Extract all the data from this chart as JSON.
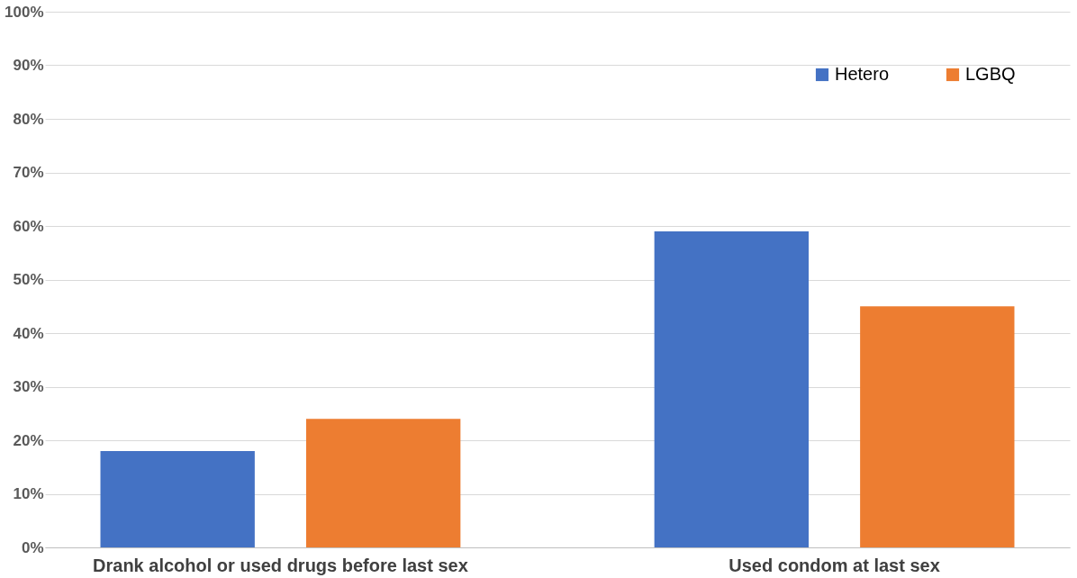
{
  "chart_data": {
    "type": "bar",
    "categories": [
      "Drank alcohol or used drugs before last sex",
      "Used condom at last sex"
    ],
    "series": [
      {
        "name": "Hetero",
        "color": "#4472c4",
        "values": [
          18,
          59
        ]
      },
      {
        "name": "LGBQ",
        "color": "#ed7d31",
        "values": [
          24,
          45
        ]
      }
    ],
    "ylim": [
      0,
      100
    ],
    "yticks": [
      {
        "value": 0,
        "label": "0%"
      },
      {
        "value": 10,
        "label": "10%"
      },
      {
        "value": 20,
        "label": "20%"
      },
      {
        "value": 30,
        "label": "30%"
      },
      {
        "value": 40,
        "label": "40%"
      },
      {
        "value": 50,
        "label": "50%"
      },
      {
        "value": 60,
        "label": "60%"
      },
      {
        "value": 70,
        "label": "70%"
      },
      {
        "value": 80,
        "label": "80%"
      },
      {
        "value": 90,
        "label": "90%"
      },
      {
        "value": 100,
        "label": "100%"
      }
    ],
    "grid": "y",
    "legend": "top right"
  }
}
